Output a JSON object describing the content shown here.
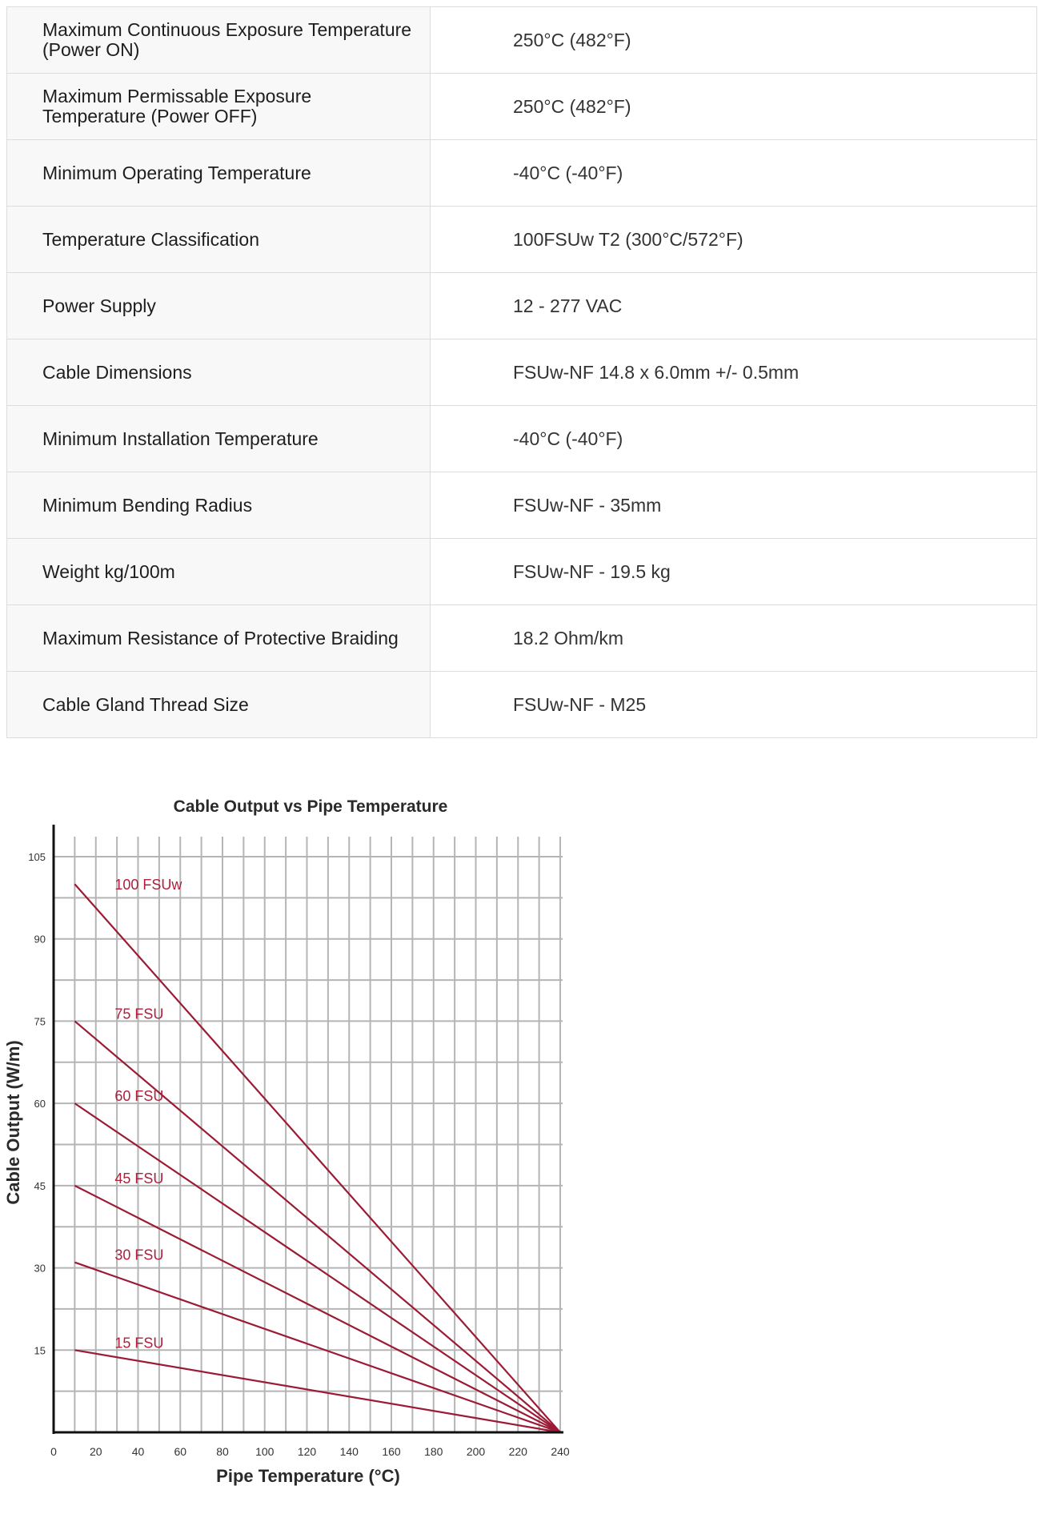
{
  "spec_table": {
    "rows": [
      {
        "label": "Maximum Continuous Exposure Temperature (Power ON)",
        "value": "250°C (482°F)"
      },
      {
        "label": "Maximum Permissable Exposure Temperature (Power OFF)",
        "value": "250°C (482°F)"
      },
      {
        "label": "Minimum Operating Temperature",
        "value": "-40°C (-40°F)"
      },
      {
        "label": "Temperature Classification",
        "value": "100FSUw T2 (300°C/572°F)"
      },
      {
        "label": "Power Supply",
        "value": "12 - 277 VAC"
      },
      {
        "label": "Cable Dimensions",
        "value": "FSUw-NF 14.8 x 6.0mm +/- 0.5mm"
      },
      {
        "label": "Minimum Installation Temperature",
        "value": "-40°C (-40°F)"
      },
      {
        "label": "Minimum Bending Radius",
        "value": "FSUw-NF - 35mm"
      },
      {
        "label": "Weight kg/100m",
        "value": "FSUw-NF - 19.5 kg"
      },
      {
        "label": "Maximum Resistance of Protective Braiding",
        "value": "18.2 Ohm/km"
      },
      {
        "label": "Cable Gland Thread Size",
        "value": "FSUw-NF - M25"
      }
    ]
  },
  "chart_data": {
    "type": "line",
    "title": "Cable Output vs Pipe Temperature",
    "xlabel": "Pipe Temperature (°C)",
    "ylabel": "Cable Output (W/m)",
    "xlim": [
      0,
      240
    ],
    "ylim": [
      0,
      105
    ],
    "xticks": [
      0,
      20,
      40,
      60,
      80,
      100,
      120,
      140,
      160,
      180,
      200,
      220,
      240
    ],
    "yticks": [
      15,
      30,
      45,
      60,
      75,
      90,
      105
    ],
    "grid": true,
    "line_color": "#9b1b35",
    "label_color": "#b0203c",
    "series": [
      {
        "name": "100 FSUw",
        "x": [
          10,
          240
        ],
        "y": [
          100,
          0
        ]
      },
      {
        "name": "75 FSU",
        "x": [
          10,
          240
        ],
        "y": [
          75,
          0
        ]
      },
      {
        "name": "60 FSU",
        "x": [
          10,
          240
        ],
        "y": [
          60,
          0
        ]
      },
      {
        "name": "45 FSU",
        "x": [
          10,
          240
        ],
        "y": [
          45,
          0
        ]
      },
      {
        "name": "30 FSU",
        "x": [
          10,
          240
        ],
        "y": [
          31,
          0
        ]
      },
      {
        "name": "15 FSU",
        "x": [
          10,
          240
        ],
        "y": [
          15,
          0
        ]
      }
    ]
  }
}
